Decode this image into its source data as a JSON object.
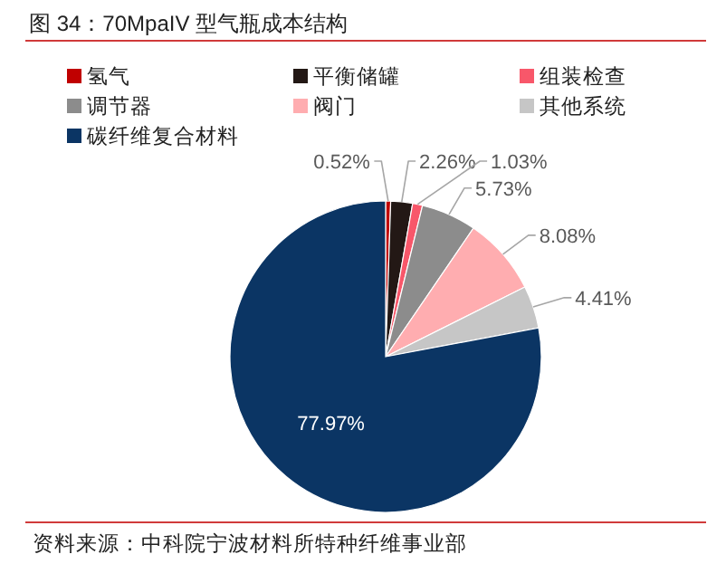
{
  "chart_data": {
    "type": "pie",
    "title": "图 34：70MpaIV 型气瓶成本结构",
    "categories": [
      "氢气",
      "平衡储罐",
      "组装检查",
      "调节器",
      "阀门",
      "其他系统",
      "碳纤维复合材料"
    ],
    "values": [
      0.52,
      2.26,
      1.03,
      5.73,
      8.08,
      4.41,
      77.97
    ],
    "colors": [
      "#c00000",
      "#231815",
      "#f8576a",
      "#8c8c8c",
      "#ffadb0",
      "#c6c6c6",
      "#0b3564"
    ],
    "value_labels": [
      "0.52%",
      "2.26%",
      "1.03%",
      "5.73%",
      "8.08%",
      "4.41%",
      "77.97%"
    ],
    "legend": "top",
    "annotations": [
      "资料来源：中科院宁波材料所特种纤维事业部"
    ]
  }
}
